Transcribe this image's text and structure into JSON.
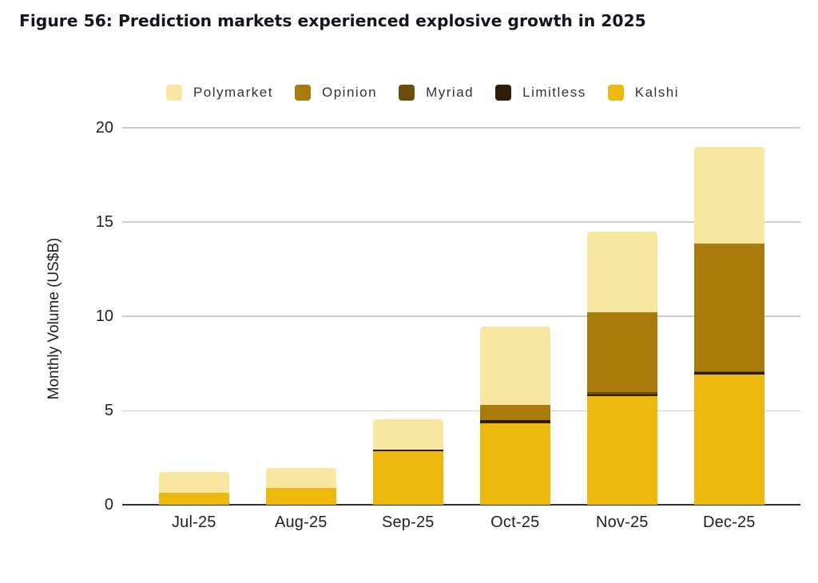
{
  "title": "Figure 56: Prediction markets experienced explosive growth in 2025",
  "chart_data": {
    "type": "bar",
    "stacked": true,
    "title": "Figure 56: Prediction markets experienced explosive growth in 2025",
    "xlabel": "",
    "ylabel": "Monthly Volume (US$B)",
    "categories": [
      "Jul-25",
      "Aug-25",
      "Sep-25",
      "Oct-25",
      "Nov-25",
      "Dec-25"
    ],
    "series": [
      {
        "name": "Polymarket",
        "color": "#F7E7A1",
        "values": [
          1.1,
          1.05,
          1.6,
          4.15,
          4.3,
          5.15
        ]
      },
      {
        "name": "Opinion",
        "color": "#A87B0B",
        "values": [
          0,
          0,
          0,
          0.8,
          4.2,
          6.75
        ]
      },
      {
        "name": "Myriad",
        "color": "#6B4E0E",
        "values": [
          0,
          0,
          0,
          0,
          0.15,
          0.05
        ]
      },
      {
        "name": "Limitless",
        "color": "#2E1D08",
        "values": [
          0,
          0,
          0.1,
          0.15,
          0.1,
          0.12
        ]
      },
      {
        "name": "Kalshi",
        "color": "#ECB80E",
        "values": [
          0.65,
          0.9,
          2.85,
          4.35,
          5.75,
          6.93
        ]
      }
    ],
    "stack_order_bottom_to_top": [
      "Kalshi",
      "Limitless",
      "Myriad",
      "Opinion",
      "Polymarket"
    ],
    "totals": [
      1.75,
      1.95,
      4.55,
      9.45,
      14.5,
      19.0
    ],
    "ylim": [
      0,
      20
    ],
    "yticks": [
      0,
      5,
      10,
      15,
      20
    ],
    "grid": true,
    "legend_position": "top"
  },
  "colors": {
    "background": "#ffffff",
    "gridline": "#cccccc",
    "axis_line": "#333333",
    "title_text": "#16141f",
    "tick_label_text": "#1f1f1f",
    "legend_text": "#333333"
  }
}
